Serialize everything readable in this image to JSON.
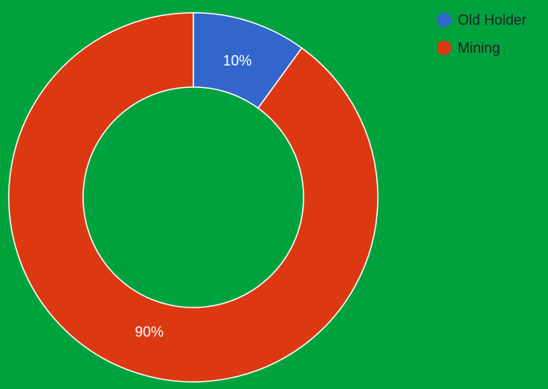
{
  "chart_data": {
    "type": "donut",
    "categories": [
      "Old Holder",
      "Mining"
    ],
    "values": [
      10,
      90
    ],
    "value_labels": [
      "10%",
      "90%"
    ],
    "colors": [
      "#3366cc",
      "#dc3912"
    ],
    "legend": "top-right"
  }
}
